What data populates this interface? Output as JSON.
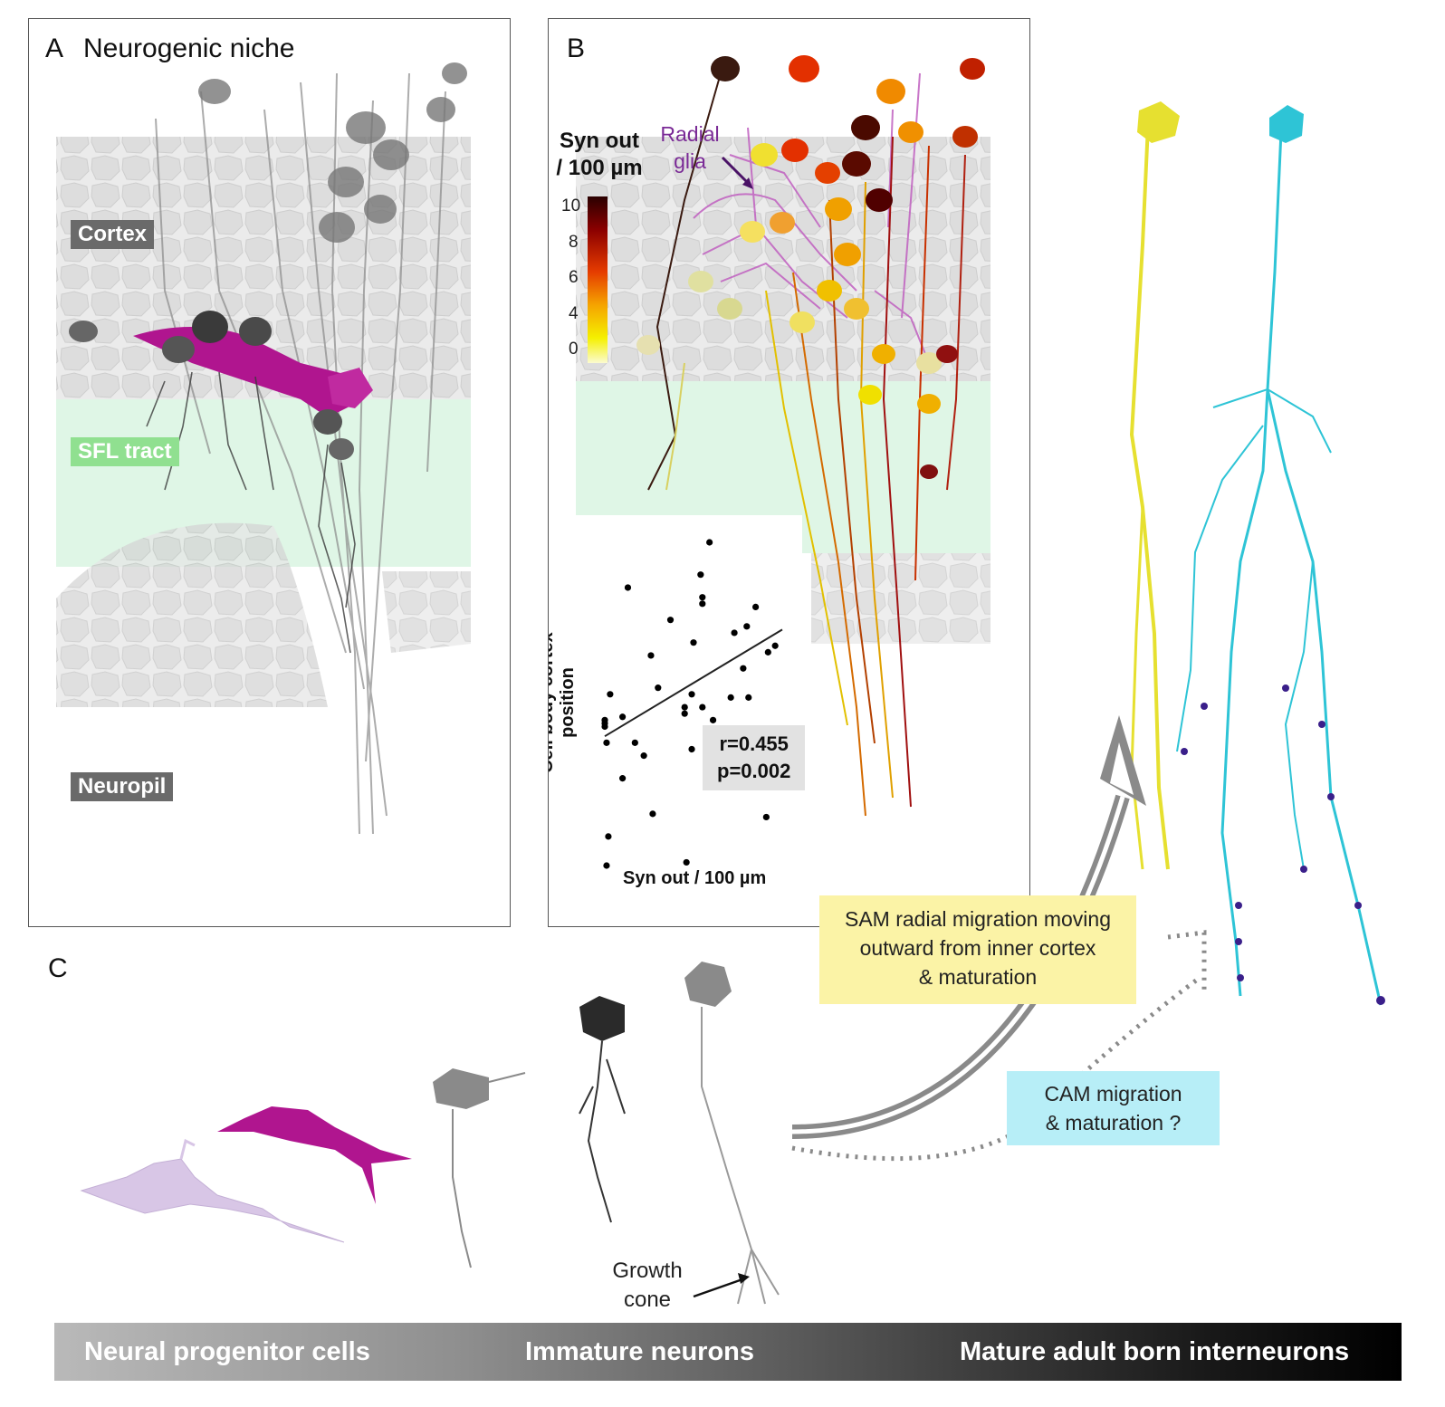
{
  "panel_a": {
    "letter": "A",
    "title": "Neurogenic niche",
    "labels": {
      "cortex": "Cortex",
      "sfl_tract": "SFL tract",
      "neuropil": "Neuropil"
    }
  },
  "panel_b": {
    "letter": "B",
    "legend": {
      "title_line1": "Syn out",
      "title_line2": "/ 100 µm",
      "ticks": [
        "10",
        "8",
        "6",
        "4",
        "0"
      ]
    },
    "radial_glia": {
      "line1": "Radial",
      "line2": "glia"
    },
    "inset": {
      "stat_r": "r=0.455",
      "stat_p": "p=0.002",
      "xlabel": "Syn out  / 100 µm",
      "ylabel": "Cell body cortex position"
    }
  },
  "panel_c": {
    "letter": "C",
    "growth_cone": {
      "line1": "Growth",
      "line2": "cone"
    },
    "sam_box": {
      "line1": "SAM radial migration moving",
      "line2": "outward from inner cortex",
      "line3": "& maturation"
    },
    "cam_box": {
      "line1": "CAM migration",
      "line2": "& maturation ?"
    }
  },
  "stage_bar": {
    "progenitor": "Neural progenitor cells",
    "immature": "Immature neurons",
    "mature": "Mature adult born interneurons"
  },
  "colors": {
    "cortex_tag": "#6a6a6a",
    "sfl_tag": "#90e090",
    "sfl_band": "#dff6e6",
    "magenta": "#b0158f",
    "radial_glia": "#c060c0",
    "yellow_neuron": "#e6e030",
    "cyan_neuron": "#2ec4d6",
    "sam_box": "#fbf3a6",
    "cam_box": "#b7eef7"
  },
  "chart_data": {
    "type": "scatter",
    "xlabel": "Syn out  / 100 µm",
    "ylabel": "Cell body cortex position",
    "annotations": [
      "r=0.455",
      "p=0.002"
    ],
    "grid": false,
    "trendline": {
      "x0": 0.0,
      "y0": 0.4,
      "x1": 1.0,
      "y1": 0.73
    },
    "points": [
      [
        0.59,
        1.0
      ],
      [
        0.13,
        0.86
      ],
      [
        0.54,
        0.9
      ],
      [
        0.55,
        0.83
      ],
      [
        0.55,
        0.81
      ],
      [
        0.37,
        0.76
      ],
      [
        0.85,
        0.8
      ],
      [
        0.8,
        0.74
      ],
      [
        0.73,
        0.72
      ],
      [
        0.5,
        0.69
      ],
      [
        0.26,
        0.65
      ],
      [
        0.78,
        0.61
      ],
      [
        0.96,
        0.68
      ],
      [
        0.92,
        0.66
      ],
      [
        0.3,
        0.55
      ],
      [
        0.49,
        0.53
      ],
      [
        0.71,
        0.52
      ],
      [
        0.81,
        0.52
      ],
      [
        0.55,
        0.49
      ],
      [
        0.45,
        0.49
      ],
      [
        0.45,
        0.47
      ],
      [
        0.61,
        0.45
      ],
      [
        0.03,
        0.53
      ],
      [
        0.1,
        0.46
      ],
      [
        0.0,
        0.45
      ],
      [
        0.0,
        0.44
      ],
      [
        0.0,
        0.43
      ],
      [
        0.17,
        0.38
      ],
      [
        0.49,
        0.36
      ],
      [
        0.22,
        0.34
      ],
      [
        0.01,
        0.38
      ],
      [
        0.1,
        0.27
      ],
      [
        0.27,
        0.16
      ],
      [
        0.91,
        0.15
      ],
      [
        0.02,
        0.09
      ],
      [
        0.46,
        0.01
      ],
      [
        0.01,
        0.0
      ]
    ]
  }
}
